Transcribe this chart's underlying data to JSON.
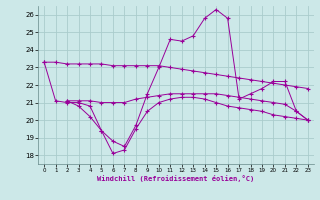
{
  "title": "Windchill (Refroidissement éolien,°C)",
  "bg_color": "#cce8e8",
  "line_color": "#990099",
  "grid_color": "#aacccc",
  "xlim": [
    -0.5,
    23.5
  ],
  "ylim": [
    17.5,
    26.5
  ],
  "yticks": [
    18,
    19,
    20,
    21,
    22,
    23,
    24,
    25,
    26
  ],
  "xticks": [
    0,
    1,
    2,
    3,
    4,
    5,
    6,
    7,
    8,
    9,
    10,
    11,
    12,
    13,
    14,
    15,
    16,
    17,
    18,
    19,
    20,
    21,
    22,
    23
  ],
  "series": [
    {
      "x": [
        0,
        1,
        2,
        3,
        4,
        5,
        6,
        7,
        8,
        9,
        10,
        11,
        12,
        13,
        14,
        15,
        16,
        17,
        18,
        19,
        20,
        21,
        22,
        23
      ],
      "y": [
        23.3,
        23.3,
        23.2,
        23.2,
        23.2,
        23.2,
        23.1,
        23.1,
        23.1,
        23.1,
        23.1,
        23.0,
        22.9,
        22.8,
        22.7,
        22.6,
        22.5,
        22.4,
        22.3,
        22.2,
        22.1,
        22.0,
        21.9,
        21.8
      ]
    },
    {
      "x": [
        0,
        1,
        2,
        3,
        4,
        5,
        6,
        7,
        8,
        9,
        10,
        11,
        12,
        13,
        14,
        15,
        16,
        17,
        18,
        19,
        20,
        21,
        22,
        23
      ],
      "y": [
        null,
        null,
        21.1,
        21.1,
        21.1,
        21.0,
        21.0,
        21.0,
        21.2,
        21.3,
        21.4,
        21.5,
        21.5,
        21.5,
        21.5,
        21.5,
        21.4,
        21.3,
        21.2,
        21.1,
        21.0,
        20.9,
        20.5,
        20.0
      ]
    },
    {
      "x": [
        2,
        3,
        4,
        5,
        6,
        7,
        8,
        9,
        10,
        11,
        12,
        13,
        14,
        15,
        16,
        17,
        18,
        19,
        20,
        21,
        22,
        23
      ],
      "y": [
        21.1,
        20.8,
        20.2,
        19.4,
        18.1,
        18.3,
        19.5,
        20.5,
        21.0,
        21.2,
        21.3,
        21.3,
        21.2,
        21.0,
        20.8,
        20.7,
        20.6,
        20.5,
        20.3,
        20.2,
        20.1,
        20.0
      ]
    },
    {
      "x": [
        0,
        1,
        2,
        3,
        4,
        5,
        6,
        7,
        8,
        9,
        10,
        11,
        12,
        13,
        14,
        15,
        16,
        17,
        18,
        19,
        20,
        21,
        22,
        23
      ],
      "y": [
        23.3,
        21.1,
        21.0,
        21.0,
        20.8,
        19.4,
        18.8,
        18.5,
        19.7,
        21.5,
        23.0,
        24.6,
        24.5,
        24.8,
        25.8,
        26.3,
        25.8,
        21.2,
        21.5,
        21.8,
        22.2,
        22.2,
        20.5,
        20.0
      ]
    }
  ]
}
